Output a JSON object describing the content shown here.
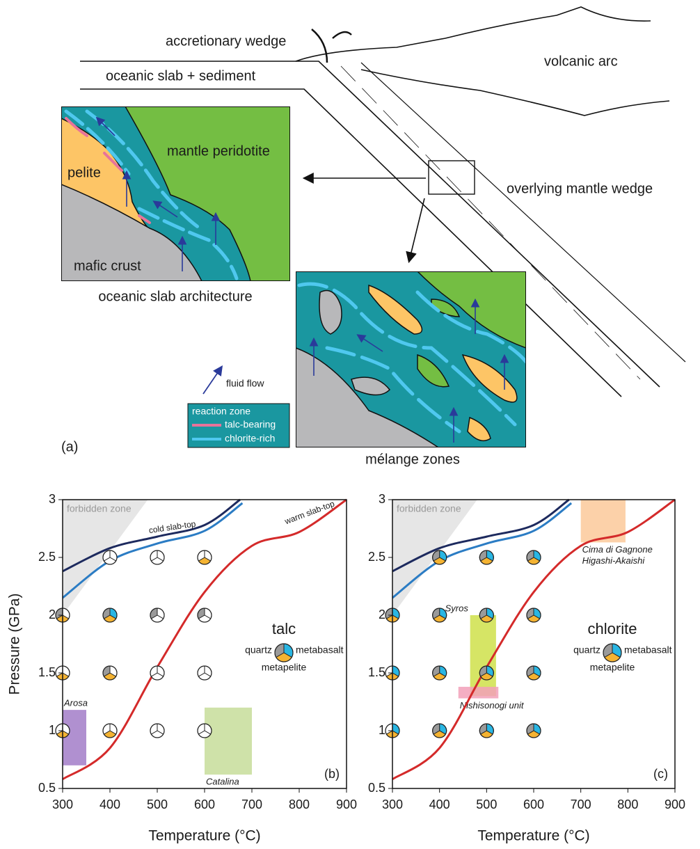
{
  "diagram": {
    "panel_label": "(a)",
    "accretionary_wedge": "accretionary wedge",
    "slab": "oceanic slab + sediment",
    "volcanic_arc": "volcanic arc",
    "mantle_wedge": "overlying mantle wedge",
    "inset1": {
      "peridotite": "mantle peridotite",
      "pelite": "pelite",
      "crust": "mafic crust",
      "caption": "oceanic slab architecture"
    },
    "inset2": {
      "caption": "mélange zones"
    },
    "legend": {
      "fluid": "fluid flow",
      "zone": "reaction zone",
      "talc": "talc-bearing",
      "chlorite": "chlorite-rich"
    }
  },
  "chart_data": [
    {
      "type": "pie-grid",
      "panel_label": "(b)",
      "title": "talc",
      "xlabel": "Temperature (°C)",
      "ylabel": "Pressure (GPa)",
      "xlim": [
        300,
        900
      ],
      "ylim": [
        0.5,
        3
      ],
      "xticks": [
        300,
        400,
        500,
        600,
        700,
        800,
        900
      ],
      "yticks": [
        0.5,
        1,
        1.5,
        2,
        2.5,
        3
      ],
      "forbidden": {
        "label": "forbidden zone",
        "x": [
          300,
          300,
          480
        ],
        "y": [
          2.0,
          3,
          3
        ]
      },
      "series": [
        {
          "name": "cold slab-top",
          "color": "#1d2a5e",
          "x": [
            300,
            400,
            500,
            600,
            675
          ],
          "y": [
            2.38,
            2.58,
            2.68,
            2.78,
            3
          ]
        },
        {
          "color": "#2b7cc4",
          "x": [
            300,
            400,
            500,
            600,
            680
          ],
          "y": [
            2.15,
            2.47,
            2.62,
            2.73,
            2.97
          ]
        },
        {
          "name": "warm slab-top",
          "color": "#d42a2a",
          "x": [
            300,
            400,
            500,
            600,
            700,
            800,
            900
          ],
          "y": [
            0.58,
            0.85,
            1.55,
            2.2,
            2.6,
            2.72,
            3
          ]
        }
      ],
      "regions": [
        {
          "labels": [
            "Arosa"
          ],
          "color": "#a27cc8",
          "xlim": [
            300,
            350
          ],
          "ylim": [
            0.7,
            1.18
          ]
        },
        {
          "labels": [
            "Catalina"
          ],
          "color": "#c7dd9a",
          "xlim": [
            600,
            700
          ],
          "ylim": [
            0.62,
            1.2
          ]
        }
      ],
      "phases": [
        "quartz",
        "metabasalt",
        "metapelite"
      ],
      "phase_colors": [
        "#9a9a9a",
        "#29b6e3",
        "#f4b332"
      ],
      "pies": [
        {
          "x": 300,
          "y": 1,
          "present": [
            0,
            0,
            1
          ]
        },
        {
          "x": 400,
          "y": 1,
          "present": [
            0,
            0,
            1
          ]
        },
        {
          "x": 500,
          "y": 1,
          "present": [
            0,
            0,
            0
          ]
        },
        {
          "x": 600,
          "y": 1,
          "present": [
            0,
            0,
            0
          ]
        },
        {
          "x": 300,
          "y": 1.5,
          "present": [
            0,
            0,
            1
          ]
        },
        {
          "x": 400,
          "y": 1.5,
          "present": [
            1,
            0,
            1
          ]
        },
        {
          "x": 500,
          "y": 1.5,
          "present": [
            0,
            0,
            0
          ]
        },
        {
          "x": 600,
          "y": 1.5,
          "present": [
            0,
            0,
            0
          ]
        },
        {
          "x": 300,
          "y": 2,
          "present": [
            1,
            0,
            1
          ]
        },
        {
          "x": 400,
          "y": 2,
          "present": [
            1,
            1,
            1
          ]
        },
        {
          "x": 500,
          "y": 2,
          "present": [
            1,
            0,
            0
          ]
        },
        {
          "x": 600,
          "y": 2,
          "present": [
            1,
            0,
            0
          ]
        },
        {
          "x": 400,
          "y": 2.5,
          "present": [
            0,
            0,
            0
          ]
        },
        {
          "x": 500,
          "y": 2.5,
          "present": [
            0,
            0,
            0
          ]
        },
        {
          "x": 600,
          "y": 2.5,
          "present": [
            0,
            0,
            1
          ]
        }
      ]
    },
    {
      "type": "pie-grid",
      "panel_label": "(c)",
      "title": "chlorite",
      "xlabel": "Temperature (°C)",
      "ylabel": "Pressure (GPa)",
      "xlim": [
        300,
        900
      ],
      "ylim": [
        0.5,
        3
      ],
      "xticks": [
        300,
        400,
        500,
        600,
        700,
        800,
        900
      ],
      "yticks": [
        0.5,
        1,
        1.5,
        2,
        2.5,
        3
      ],
      "forbidden": {
        "label": "forbidden zone",
        "x": [
          300,
          300,
          480
        ],
        "y": [
          2.0,
          3,
          3
        ]
      },
      "series": [
        {
          "color": "#1d2a5e",
          "x": [
            300,
            400,
            500,
            600,
            675
          ],
          "y": [
            2.38,
            2.58,
            2.68,
            2.78,
            3
          ]
        },
        {
          "color": "#2b7cc4",
          "x": [
            300,
            400,
            500,
            600,
            680
          ],
          "y": [
            2.15,
            2.47,
            2.62,
            2.73,
            2.97
          ]
        },
        {
          "color": "#d42a2a",
          "x": [
            300,
            400,
            500,
            600,
            700,
            800,
            900
          ],
          "y": [
            0.58,
            0.85,
            1.55,
            2.2,
            2.6,
            2.72,
            3
          ]
        }
      ],
      "regions": [
        {
          "labels": [
            "Cima di Gagnone",
            "Higashi-Akaishi"
          ],
          "color": "#fbc99a",
          "xlim": [
            700,
            795
          ],
          "ylim": [
            2.63,
            3
          ]
        },
        {
          "labels": [
            "Syros"
          ],
          "color": "#cfe04a",
          "xlim": [
            465,
            520
          ],
          "ylim": [
            1.3,
            2.0
          ]
        },
        {
          "labels": [
            "Nishisonogi unit"
          ],
          "color": "#f2a0b8",
          "xlim": [
            440,
            525
          ],
          "ylim": [
            1.28,
            1.38
          ]
        }
      ],
      "phases": [
        "quartz",
        "metabasalt",
        "metapelite"
      ],
      "phase_colors": [
        "#9a9a9a",
        "#29b6e3",
        "#f4b332"
      ],
      "pies": [
        {
          "x": 300,
          "y": 1,
          "present": [
            0,
            1,
            1
          ]
        },
        {
          "x": 400,
          "y": 1,
          "present": [
            1,
            1,
            1
          ]
        },
        {
          "x": 500,
          "y": 1,
          "present": [
            1,
            1,
            1
          ]
        },
        {
          "x": 600,
          "y": 1,
          "present": [
            1,
            1,
            1
          ]
        },
        {
          "x": 300,
          "y": 1.5,
          "present": [
            0,
            1,
            1
          ]
        },
        {
          "x": 400,
          "y": 1.5,
          "present": [
            1,
            1,
            1
          ]
        },
        {
          "x": 500,
          "y": 1.5,
          "present": [
            1,
            1,
            1
          ]
        },
        {
          "x": 600,
          "y": 1.5,
          "present": [
            1,
            1,
            1
          ]
        },
        {
          "x": 300,
          "y": 2,
          "present": [
            1,
            1,
            1
          ]
        },
        {
          "x": 400,
          "y": 2,
          "present": [
            1,
            1,
            1
          ]
        },
        {
          "x": 500,
          "y": 2,
          "present": [
            1,
            1,
            1
          ]
        },
        {
          "x": 600,
          "y": 2,
          "present": [
            1,
            1,
            1
          ]
        },
        {
          "x": 400,
          "y": 2.5,
          "present": [
            1,
            1,
            1
          ]
        },
        {
          "x": 500,
          "y": 2.5,
          "present": [
            1,
            1,
            1
          ]
        },
        {
          "x": 600,
          "y": 2.5,
          "present": [
            1,
            1,
            1
          ]
        }
      ]
    }
  ]
}
